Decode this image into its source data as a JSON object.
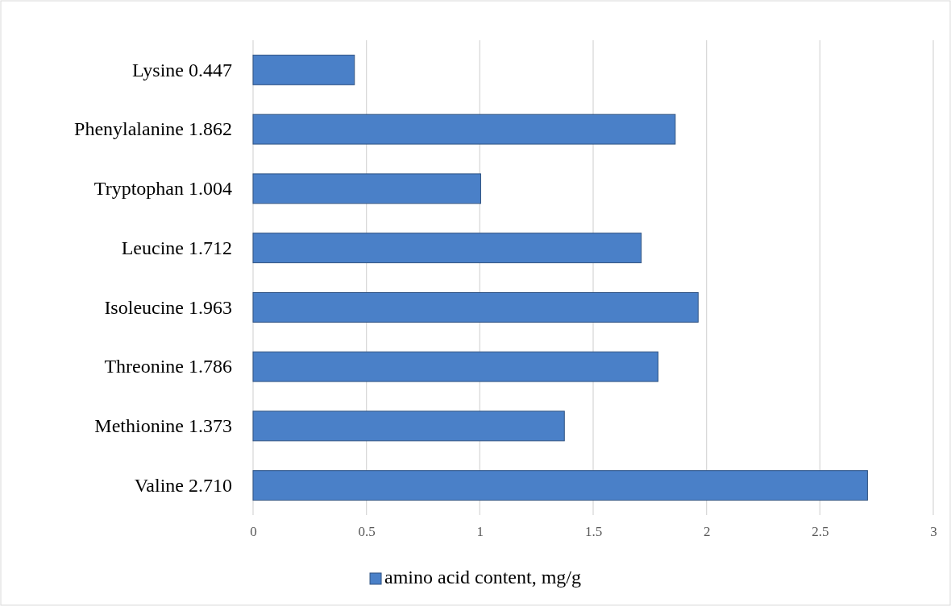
{
  "chart_data": {
    "type": "bar",
    "orientation": "horizontal",
    "categories": [
      "Lysine 0.447",
      "Phenylalanine 1.862",
      "Tryptophan 1.004",
      "Leucine 1.712",
      "Isoleucine 1.963",
      "Threonine 1.786",
      "Methionine 1.373",
      "Valine 2.710"
    ],
    "series": [
      {
        "name": "amino acid content, mg/g",
        "color": "#4a80c8",
        "values": [
          0.447,
          1.862,
          1.004,
          1.712,
          1.963,
          1.786,
          1.373,
          2.71
        ]
      }
    ],
    "xlim": [
      0,
      3
    ],
    "xticks": [
      0,
      0.5,
      1,
      1.5,
      2,
      2.5,
      3
    ],
    "grid": "x",
    "legend": "bottom"
  }
}
